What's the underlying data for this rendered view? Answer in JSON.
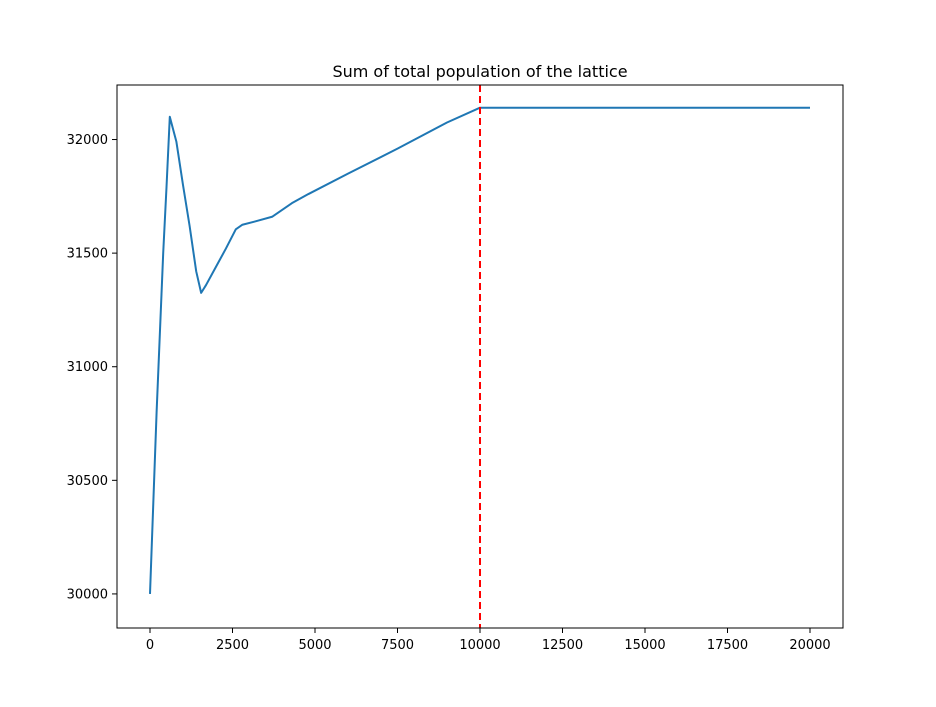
{
  "chart_data": {
    "type": "line",
    "title": "Sum of total population of the lattice",
    "xlabel": "",
    "ylabel": "",
    "xlim": [
      -1000,
      21000
    ],
    "ylim": [
      29850,
      32240
    ],
    "xticks": [
      0,
      2500,
      5000,
      7500,
      10000,
      12500,
      15000,
      17500,
      20000
    ],
    "xtick_labels": [
      "0",
      "2500",
      "5000",
      "7500",
      "10000",
      "12500",
      "15000",
      "17500",
      "20000"
    ],
    "yticks": [
      30000,
      30500,
      31000,
      31500,
      32000
    ],
    "ytick_labels": [
      "30000",
      "30500",
      "31000",
      "31500",
      "32000"
    ],
    "grid": false,
    "series": [
      {
        "color": "#1f77b4",
        "x": [
          0,
          100,
          200,
          300,
          400,
          500,
          600,
          800,
          1000,
          1200,
          1400,
          1550,
          1700,
          2000,
          2300,
          2600,
          2800,
          3200,
          3700,
          4300,
          4800,
          6000,
          7500,
          9000,
          10000,
          10100,
          12500,
          15000,
          17500,
          20000
        ],
        "y": [
          30000,
          30400,
          30800,
          31150,
          31500,
          31790,
          32100,
          31990,
          31800,
          31620,
          31420,
          31325,
          31360,
          31440,
          31520,
          31605,
          31625,
          31640,
          31660,
          31720,
          31760,
          31850,
          31960,
          32075,
          32140,
          32140,
          32140,
          32140,
          32140,
          32140
        ]
      }
    ],
    "annotations": [
      {
        "type": "vline",
        "x": 10000,
        "color": "#ff0000",
        "style": "dashed"
      }
    ]
  }
}
